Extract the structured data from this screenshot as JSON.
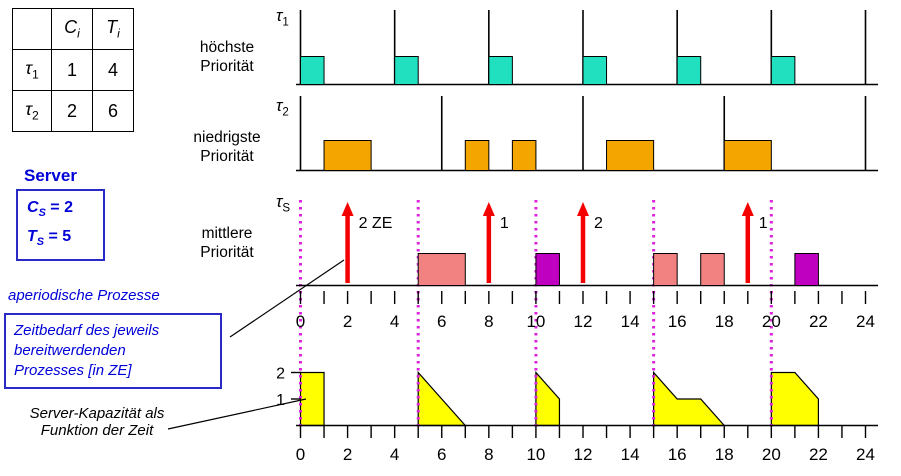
{
  "task_table": {
    "col_c": {
      "base": "C",
      "sub": "i"
    },
    "col_t": {
      "base": "T",
      "sub": "i"
    },
    "rows": [
      {
        "name": {
          "base": "τ",
          "sub": "1"
        },
        "c": "1",
        "t": "4"
      },
      {
        "name": {
          "base": "τ",
          "sub": "2"
        },
        "c": "2",
        "t": "6"
      }
    ]
  },
  "server_panel": {
    "title": "Server",
    "cs": {
      "base": "C",
      "sub": "S",
      "rest": " = 2"
    },
    "ts": {
      "base": "T",
      "sub": "S",
      "rest": " = 5"
    }
  },
  "annotations": {
    "aperiodic": "aperiodische Prozesse",
    "zeitbedarf_lines": [
      "Zeitbedarf des jeweils",
      "bereitwerdenden",
      "Prozesses [in ZE]"
    ],
    "kapazitaet_lines": [
      "Server-Kapazität als",
      "Funktion der Zeit"
    ]
  },
  "rows": {
    "tau1": {
      "label": {
        "base": "τ",
        "sub": "1"
      },
      "priority_lines": [
        "höchste",
        "Priorität"
      ]
    },
    "tau2": {
      "label": {
        "base": "τ",
        "sub": "2"
      },
      "priority_lines": [
        "niedrigste",
        "Priorität"
      ]
    },
    "server": {
      "label": {
        "base": "τ",
        "sub": "S"
      },
      "priority_lines": [
        "mittlere",
        "Priorität"
      ]
    }
  },
  "colors": {
    "accent_blue": "#0000d8",
    "box_border_blue": "#2929c8"
  },
  "chart_data": {
    "type": "timeline",
    "time_axis": {
      "min": 0,
      "max": 24,
      "tick_step": 1,
      "label_step": 2
    },
    "tau1": {
      "period": 4,
      "color": "#21e0c0",
      "period_marks": [
        0,
        4,
        8,
        12,
        16,
        20,
        24
      ],
      "exec_blocks": [
        [
          0,
          1
        ],
        [
          4,
          5
        ],
        [
          8,
          9
        ],
        [
          12,
          13
        ],
        [
          16,
          17
        ],
        [
          20,
          21
        ]
      ]
    },
    "tau2": {
      "period": 6,
      "color": "#f5a500",
      "period_marks": [
        0,
        6,
        12,
        18,
        24
      ],
      "exec_blocks": [
        [
          1,
          3
        ],
        [
          7,
          8
        ],
        [
          9,
          10
        ],
        [
          13,
          15
        ],
        [
          18,
          20
        ]
      ]
    },
    "server": {
      "period": 5,
      "capacity": 2,
      "replenish_marks": [
        0,
        5,
        10,
        15,
        20
      ],
      "replenish_color": "#dd22dd",
      "arrival_color": "#f40000",
      "arrivals": [
        {
          "t": 2,
          "label": "2 ZE"
        },
        {
          "t": 8,
          "label": "1"
        },
        {
          "t": 12,
          "label": "2"
        },
        {
          "t": 19,
          "label": "1"
        }
      ],
      "exec_blocks": [
        {
          "from": 5,
          "to": 7,
          "color": "#f28282"
        },
        {
          "from": 10,
          "to": 11,
          "color": "#c000c0"
        },
        {
          "from": 15,
          "to": 16,
          "color": "#f28282"
        },
        {
          "from": 17,
          "to": 18,
          "color": "#f28282"
        },
        {
          "from": 21,
          "to": 22,
          "color": "#c000c0"
        }
      ]
    },
    "capacity_fn": {
      "color": "#ffff00",
      "y_ticks": [
        1,
        2
      ],
      "shapes": [
        [
          [
            0,
            0
          ],
          [
            0,
            2
          ],
          [
            1,
            2
          ],
          [
            1,
            0
          ]
        ],
        [
          [
            5,
            0
          ],
          [
            5,
            2
          ],
          [
            7,
            0
          ]
        ],
        [
          [
            10,
            0
          ],
          [
            10,
            2
          ],
          [
            11,
            1
          ],
          [
            11,
            0
          ]
        ],
        [
          [
            15,
            0
          ],
          [
            15,
            2
          ],
          [
            16,
            1
          ],
          [
            17,
            1
          ],
          [
            18,
            0
          ]
        ],
        [
          [
            20,
            0
          ],
          [
            20,
            2
          ],
          [
            21,
            2
          ],
          [
            22,
            1
          ],
          [
            22,
            0
          ]
        ]
      ]
    }
  }
}
